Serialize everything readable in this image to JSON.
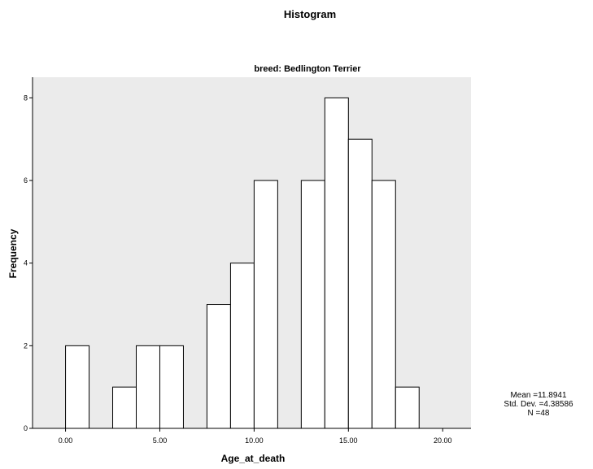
{
  "chart_data": {
    "type": "bar",
    "title": "Histogram",
    "subtitle": "breed: Bedlington Terrier",
    "xlabel": "Age_at_death",
    "ylabel": "Frequency",
    "bin_width": 1.25,
    "bins": [
      {
        "start": 0.0,
        "end": 1.25,
        "count": 2
      },
      {
        "start": 2.5,
        "end": 3.75,
        "count": 1
      },
      {
        "start": 3.75,
        "end": 5.0,
        "count": 2
      },
      {
        "start": 5.0,
        "end": 6.25,
        "count": 2
      },
      {
        "start": 7.5,
        "end": 8.75,
        "count": 3
      },
      {
        "start": 8.75,
        "end": 10.0,
        "count": 4
      },
      {
        "start": 10.0,
        "end": 11.25,
        "count": 6
      },
      {
        "start": 12.5,
        "end": 13.75,
        "count": 6
      },
      {
        "start": 13.75,
        "end": 15.0,
        "count": 8
      },
      {
        "start": 15.0,
        "end": 16.25,
        "count": 7
      },
      {
        "start": 16.25,
        "end": 17.5,
        "count": 6
      },
      {
        "start": 17.5,
        "end": 18.75,
        "count": 1
      }
    ],
    "xlim": [
      -1.75,
      21.5
    ],
    "ylim": [
      0,
      8.5
    ],
    "xticks": [
      0,
      5,
      10,
      15,
      20
    ],
    "xtick_labels": [
      "0.00",
      "5.00",
      "10.00",
      "15.00",
      "20.00"
    ],
    "yticks": [
      0,
      2,
      4,
      6,
      8
    ],
    "ytick_labels": [
      "0",
      "2",
      "4",
      "6",
      "8"
    ],
    "stats": {
      "mean": "Mean =11.8941",
      "std": "Std. Dev. =4.38586",
      "n": "N =48"
    },
    "colors": {
      "plot_background": "#ebebeb",
      "bar_fill": "#ffffff",
      "bar_stroke": "#000000"
    }
  }
}
